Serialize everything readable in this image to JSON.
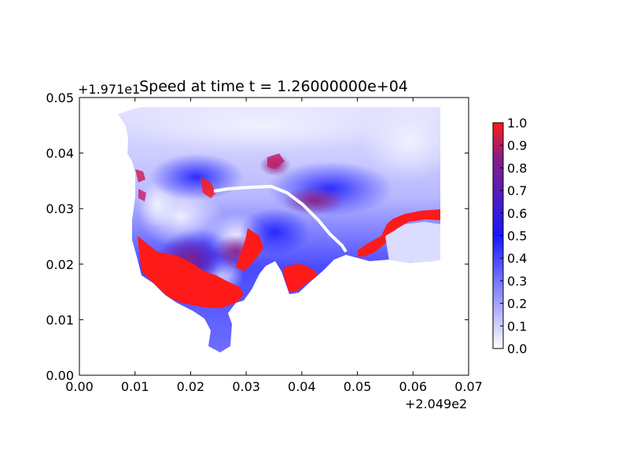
{
  "chart_data": {
    "type": "heatmap",
    "title": "Speed at time t = 1.26000000e+04",
    "x_offset_label": "+2.049e2",
    "y_offset_label": "+1.971e1",
    "xlim": [
      0.0,
      0.07
    ],
    "ylim": [
      0.0,
      0.05
    ],
    "x_ticks": [
      0.0,
      0.01,
      0.02,
      0.03,
      0.04,
      0.05,
      0.06,
      0.07
    ],
    "y_ticks": [
      0.0,
      0.01,
      0.02,
      0.03,
      0.04,
      0.05
    ],
    "x_tick_labels": [
      "0.00",
      "0.01",
      "0.02",
      "0.03",
      "0.04",
      "0.05",
      "0.06",
      "0.07"
    ],
    "y_tick_labels": [
      "0.00",
      "0.01",
      "0.02",
      "0.03",
      "0.04",
      "0.05"
    ],
    "colorbar": {
      "vmin": 0.0,
      "vmax": 1.0,
      "ticks": [
        0.0,
        0.1,
        0.2,
        0.3,
        0.4,
        0.5,
        0.6,
        0.7,
        0.8,
        0.9,
        1.0
      ],
      "tick_labels": [
        "0.0",
        "0.1",
        "0.2",
        "0.3",
        "0.4",
        "0.5",
        "0.6",
        "0.7",
        "0.8",
        "0.9",
        "1.0"
      ],
      "colors": [
        "#ffffff",
        "#1818ff",
        "#ff1a1a"
      ]
    },
    "grid": false,
    "colormap_stops": [
      "#ffffff",
      "#1818ff",
      "#ff1a1a"
    ]
  }
}
